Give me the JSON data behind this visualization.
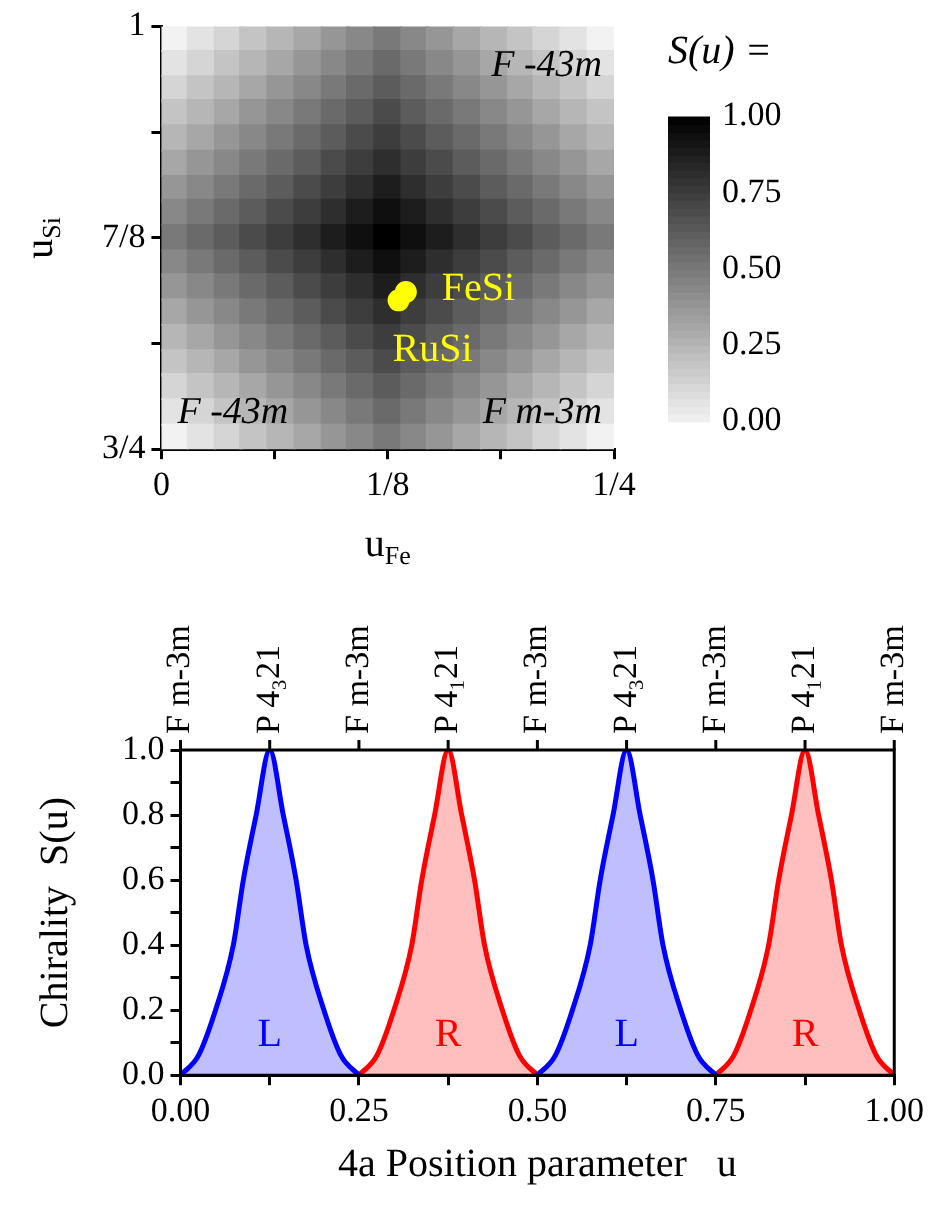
{
  "chart_data": [
    {
      "type": "heatmap",
      "xlabel": "u$_{Fe}$",
      "ylabel": "u$_{Si}$",
      "clabel": "S(u) =",
      "x": [
        0.007,
        0.022,
        0.037,
        0.051,
        0.066,
        0.081,
        0.096,
        0.11,
        0.125,
        0.14,
        0.154,
        0.169,
        0.184,
        0.199,
        0.213,
        0.228,
        0.243
      ],
      "y": [
        0.993,
        0.978,
        0.963,
        0.949,
        0.934,
        0.919,
        0.904,
        0.89,
        0.875,
        0.86,
        0.846,
        0.831,
        0.816,
        0.801,
        0.787,
        0.772,
        0.757
      ],
      "cells": [
        [
          0,
          0.06,
          0.12,
          0.19,
          0.25,
          0.31,
          0.38,
          0.44,
          0.5,
          0.44,
          0.38,
          0.31,
          0.25,
          0.19,
          0.12,
          0.06,
          0
        ],
        [
          0.06,
          0.12,
          0.19,
          0.25,
          0.31,
          0.38,
          0.44,
          0.5,
          0.56,
          0.5,
          0.44,
          0.38,
          0.31,
          0.25,
          0.19,
          0.12,
          0.06
        ],
        [
          0.12,
          0.19,
          0.25,
          0.31,
          0.38,
          0.44,
          0.5,
          0.56,
          0.62,
          0.56,
          0.5,
          0.44,
          0.38,
          0.31,
          0.25,
          0.19,
          0.12
        ],
        [
          0.19,
          0.25,
          0.31,
          0.38,
          0.44,
          0.5,
          0.56,
          0.62,
          0.69,
          0.62,
          0.56,
          0.5,
          0.44,
          0.38,
          0.31,
          0.25,
          0.19
        ],
        [
          0.25,
          0.31,
          0.38,
          0.44,
          0.5,
          0.56,
          0.62,
          0.69,
          0.75,
          0.69,
          0.62,
          0.56,
          0.5,
          0.44,
          0.38,
          0.31,
          0.25
        ],
        [
          0.31,
          0.38,
          0.44,
          0.5,
          0.56,
          0.62,
          0.69,
          0.75,
          0.81,
          0.75,
          0.69,
          0.62,
          0.56,
          0.5,
          0.44,
          0.38,
          0.31
        ],
        [
          0.38,
          0.44,
          0.5,
          0.56,
          0.62,
          0.69,
          0.75,
          0.81,
          0.88,
          0.81,
          0.75,
          0.69,
          0.62,
          0.56,
          0.5,
          0.44,
          0.38
        ],
        [
          0.44,
          0.5,
          0.56,
          0.62,
          0.69,
          0.75,
          0.81,
          0.88,
          0.94,
          0.88,
          0.81,
          0.75,
          0.69,
          0.62,
          0.56,
          0.5,
          0.44
        ],
        [
          0.5,
          0.56,
          0.62,
          0.69,
          0.75,
          0.81,
          0.88,
          0.94,
          1,
          0.94,
          0.88,
          0.81,
          0.75,
          0.69,
          0.62,
          0.56,
          0.5
        ],
        [
          0.44,
          0.5,
          0.56,
          0.62,
          0.69,
          0.75,
          0.81,
          0.88,
          0.94,
          0.88,
          0.81,
          0.75,
          0.69,
          0.62,
          0.56,
          0.5,
          0.44
        ],
        [
          0.38,
          0.44,
          0.5,
          0.56,
          0.62,
          0.69,
          0.75,
          0.81,
          0.88,
          0.81,
          0.75,
          0.69,
          0.62,
          0.56,
          0.5,
          0.44,
          0.38
        ],
        [
          0.31,
          0.38,
          0.44,
          0.5,
          0.56,
          0.62,
          0.69,
          0.75,
          0.81,
          0.75,
          0.69,
          0.62,
          0.56,
          0.5,
          0.44,
          0.38,
          0.31
        ],
        [
          0.25,
          0.31,
          0.38,
          0.44,
          0.5,
          0.56,
          0.62,
          0.69,
          0.75,
          0.69,
          0.62,
          0.56,
          0.5,
          0.44,
          0.38,
          0.31,
          0.25
        ],
        [
          0.19,
          0.25,
          0.31,
          0.38,
          0.44,
          0.5,
          0.56,
          0.62,
          0.69,
          0.62,
          0.56,
          0.5,
          0.44,
          0.38,
          0.31,
          0.25,
          0.19
        ],
        [
          0.12,
          0.19,
          0.25,
          0.31,
          0.38,
          0.44,
          0.5,
          0.56,
          0.62,
          0.56,
          0.5,
          0.44,
          0.38,
          0.31,
          0.25,
          0.19,
          0.12
        ],
        [
          0.06,
          0.12,
          0.19,
          0.25,
          0.31,
          0.38,
          0.44,
          0.5,
          0.56,
          0.5,
          0.44,
          0.38,
          0.31,
          0.25,
          0.19,
          0.12,
          0.06
        ],
        [
          0,
          0.06,
          0.12,
          0.19,
          0.25,
          0.31,
          0.38,
          0.44,
          0.5,
          0.44,
          0.38,
          0.31,
          0.25,
          0.19,
          0.12,
          0.06,
          0
        ]
      ],
      "xlim": [
        0,
        0.25
      ],
      "ylim": [
        0.75,
        1
      ],
      "xticks": [
        0,
        {
          "value": 0.0625,
          "label": null
        },
        {
          "value": 0.125,
          "label": "1/8"
        },
        {
          "value": 0.1875,
          "label": null
        },
        {
          "value": 0.25,
          "label": "1/4"
        }
      ],
      "yticks": [
        {
          "value": 0.75,
          "label": "3/4"
        },
        {
          "value": 0.8125,
          "label": null
        },
        {
          "value": 0.875,
          "label": "7/8"
        },
        {
          "value": 0.9375,
          "label": null
        },
        1
      ],
      "clim": [
        0,
        1
      ],
      "cticks": [
        {
          "value": 0,
          "label": "0.00"
        },
        {
          "value": 0.25,
          "label": "0.25"
        },
        {
          "value": 0.5,
          "label": "0.50"
        },
        {
          "value": 0.75,
          "label": "0.75"
        },
        {
          "value": 1,
          "label": "1.00"
        }
      ],
      "series": [
        {
          "type": "scatter",
          "name": "FeSi",
          "color": "#ffff00",
          "x": [
            0.135
          ],
          "values": [
            0.843
          ]
        },
        {
          "type": "scatter",
          "name": "RuSi",
          "color": "#ffff00",
          "x": [
            0.131
          ],
          "values": [
            0.838
          ]
        }
      ],
      "annotations": [
        "F -43m",
        "F -43m",
        "F m-3m"
      ]
    },
    {
      "type": "area",
      "xlabel": "4a Position parameter   u",
      "ylabel": "Chirality  S(u)",
      "xlim": [
        0,
        1
      ],
      "ylim": [
        0,
        1
      ],
      "xticks": [
        {
          "value": 0,
          "label": "0.00"
        },
        {
          "value": 0.125,
          "label": null
        },
        {
          "value": 0.25,
          "label": "0.25"
        },
        {
          "value": 0.375,
          "label": null
        },
        {
          "value": 0.5,
          "label": "0.50"
        },
        {
          "value": 0.625,
          "label": null
        },
        {
          "value": 0.75,
          "label": "0.75"
        },
        {
          "value": 0.875,
          "label": null
        },
        {
          "value": 1,
          "label": "1.00"
        }
      ],
      "yticks": [
        {
          "value": 0,
          "label": "0.0"
        },
        {
          "value": 0.1,
          "label": null
        },
        0.2,
        {
          "value": 0.3,
          "label": null
        },
        0.4,
        {
          "value": 0.5,
          "label": null
        },
        0.6,
        {
          "value": 0.7,
          "label": null
        },
        0.8,
        {
          "value": 0.9,
          "label": null
        },
        {
          "value": 1,
          "label": "1.0"
        }
      ],
      "series": [
        {
          "color": "#0000ff",
          "x": [
            0,
            0.025,
            0.049,
            0.074,
            0.088,
            0.106,
            0.125,
            0.144,
            0.162,
            0.176,
            0.201,
            0.225,
            0.25,
            0.375,
            0.5,
            0.525,
            0.549,
            0.574,
            0.588,
            0.606,
            0.625,
            0.644,
            0.662,
            0.676,
            0.701,
            0.725,
            0.75
          ],
          "values": [
            0,
            0.06,
            0.2,
            0.4,
            0.6,
            0.8,
            1,
            0.8,
            0.6,
            0.4,
            0.2,
            0.06,
            0,
            null,
            0,
            0.06,
            0.2,
            0.4,
            0.6,
            0.8,
            1,
            0.8,
            0.6,
            0.4,
            0.2,
            0.06,
            0
          ]
        },
        {
          "color": "#ff0000",
          "x": [
            0.25,
            0.275,
            0.299,
            0.324,
            0.338,
            0.356,
            0.375,
            0.394,
            0.412,
            0.426,
            0.451,
            0.475,
            0.5,
            0.625,
            0.75,
            0.775,
            0.799,
            0.824,
            0.838,
            0.856,
            0.875,
            0.894,
            0.912,
            0.926,
            0.951,
            0.975,
            1
          ],
          "values": [
            0,
            0.06,
            0.2,
            0.4,
            0.6,
            0.8,
            1,
            0.8,
            0.6,
            0.4,
            0.2,
            0.06,
            0,
            null,
            0,
            0.06,
            0.2,
            0.4,
            0.6,
            0.8,
            1,
            0.8,
            0.6,
            0.4,
            0.2,
            0.06,
            0
          ]
        }
      ],
      "annotations": [
        "L",
        "R",
        "L",
        "R",
        "F m-3m",
        "P 4₃21",
        "F m-3m",
        "P 4₁21",
        "F m-3m",
        "P 4₃21",
        "F m-3m",
        "P 4₁21",
        "F m-3m"
      ]
    }
  ]
}
